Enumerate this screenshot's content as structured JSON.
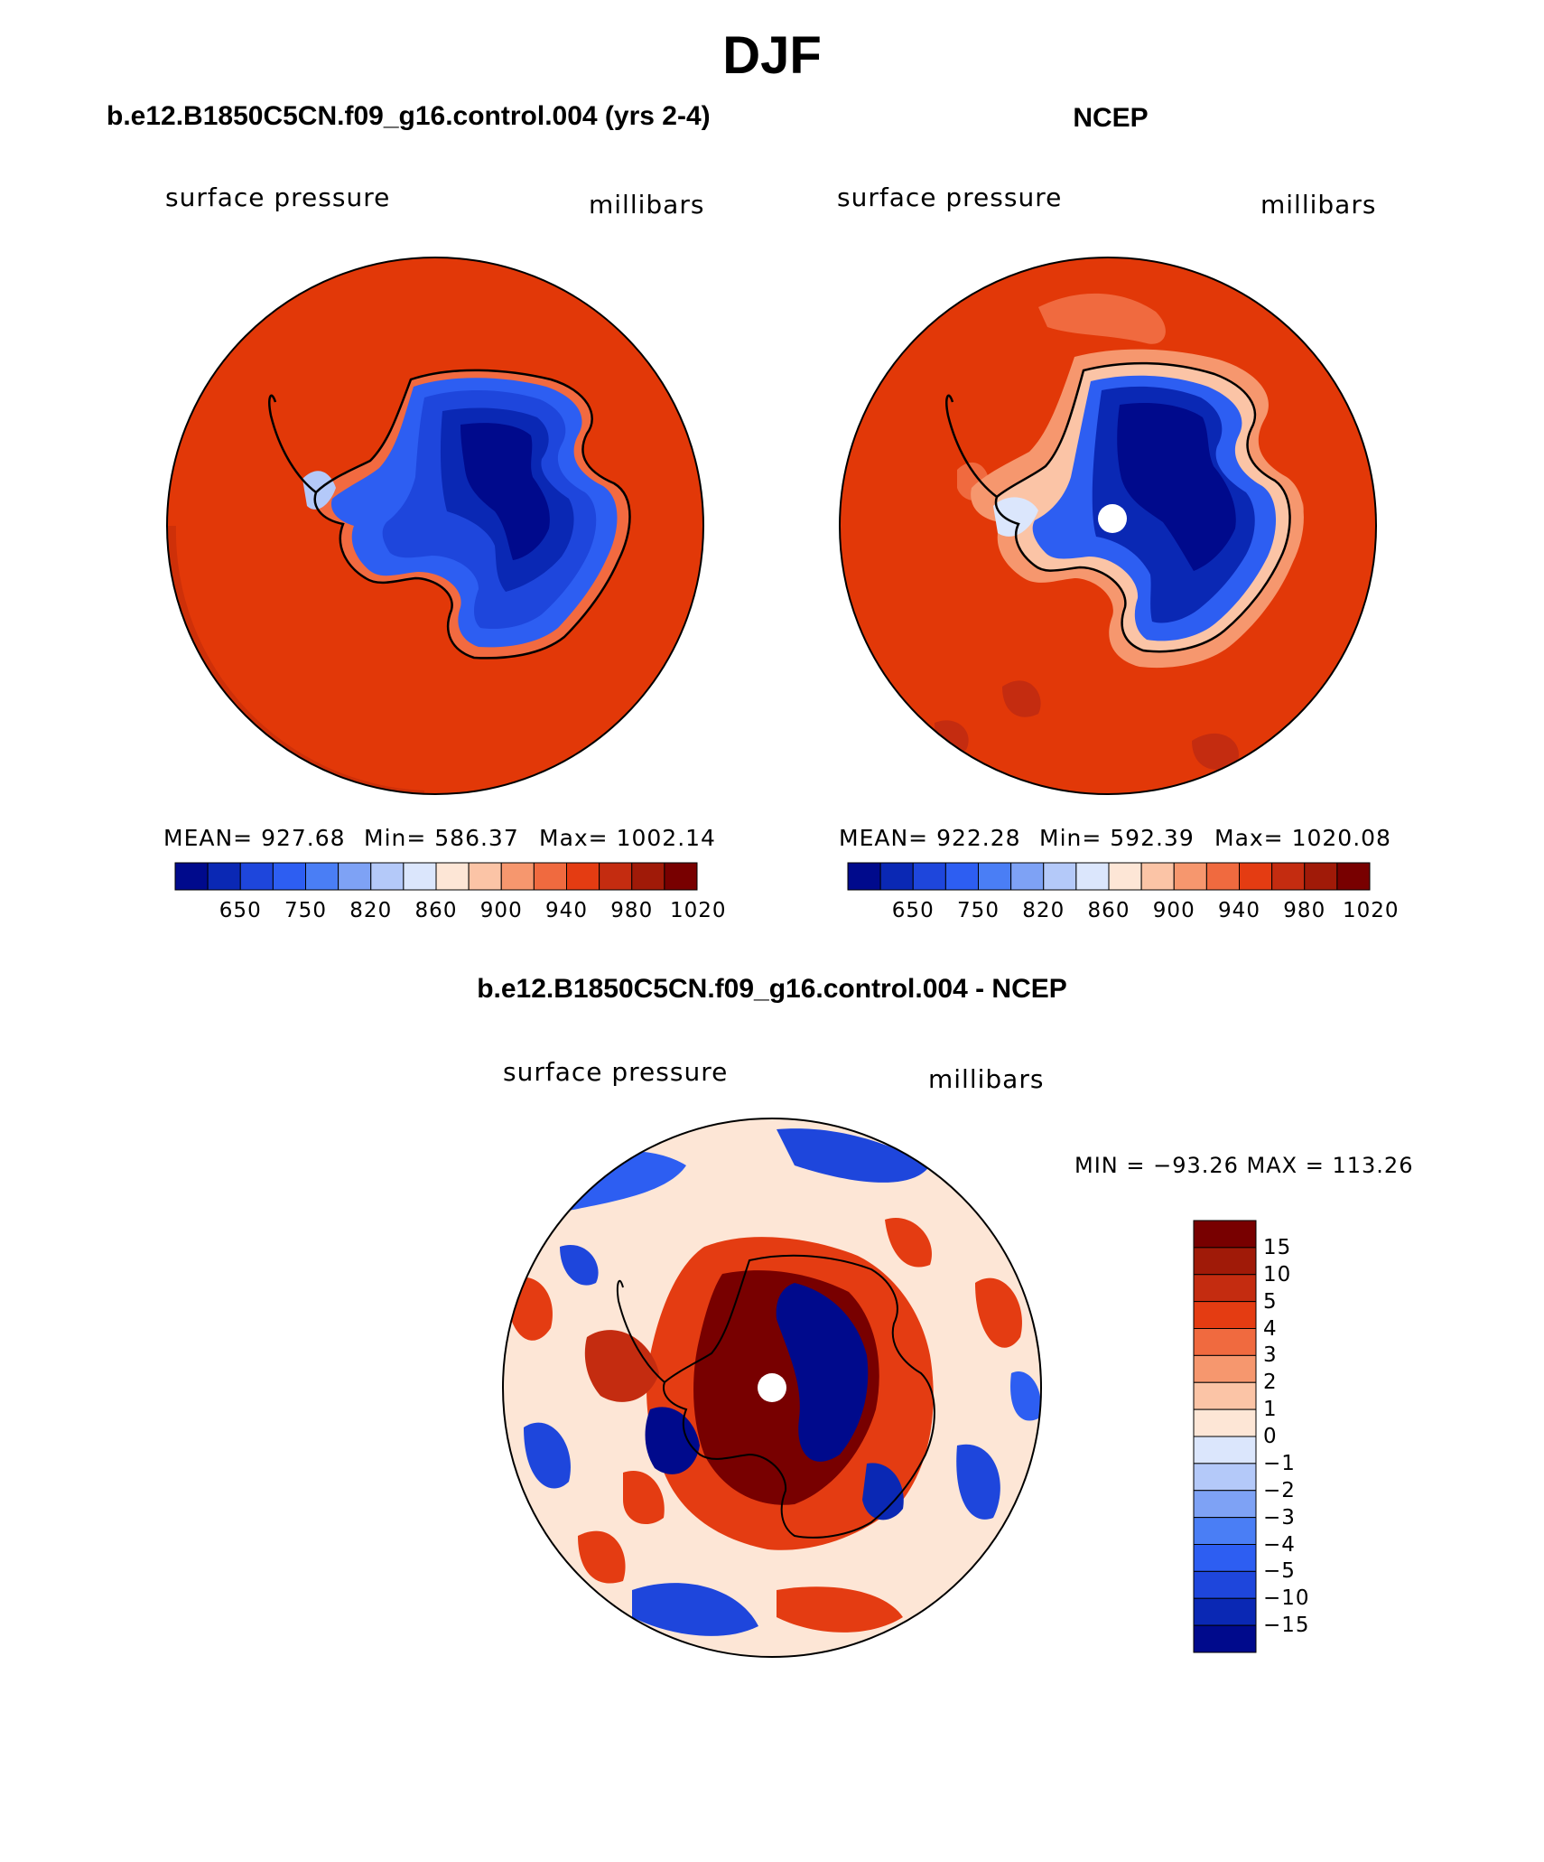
{
  "title": "DJF",
  "colors": {
    "ocean_red": "#e23808",
    "deep_blue": "#000a8c",
    "land_outline": "#000000",
    "missing_pole": "#ffffff"
  },
  "panels": [
    {
      "title": "b.e12.B1850C5CN.f09_g16.control.004 (yrs 2-4)",
      "variable_label": "surface pressure",
      "units_label": "millibars",
      "stats": {
        "mean": "MEAN= 927.68",
        "min": "Min= 586.37",
        "max": "Max= 1002.14"
      },
      "colorbar": {
        "levels": [
          "650",
          "750",
          "820",
          "860",
          "900",
          "940",
          "980",
          "1020"
        ],
        "colors": [
          "#000a8c",
          "#0a28b4",
          "#1e46dc",
          "#2d5ef2",
          "#4a7ef5",
          "#7ea2f5",
          "#b4c9f9",
          "#dbe6fc",
          "#fde6d6",
          "#fbc4a6",
          "#f6976e",
          "#f06a3f",
          "#e43c12",
          "#c42c10",
          "#a01a08",
          "#780000"
        ]
      }
    },
    {
      "title": "NCEP",
      "variable_label": "surface pressure",
      "units_label": "millibars",
      "stats": {
        "mean": "MEAN= 922.28",
        "min": "Min= 592.39",
        "max": "Max= 1020.08"
      },
      "colorbar": {
        "levels": [
          "650",
          "750",
          "820",
          "860",
          "900",
          "940",
          "980",
          "1020"
        ],
        "colors": [
          "#000a8c",
          "#0a28b4",
          "#1e46dc",
          "#2d5ef2",
          "#4a7ef5",
          "#7ea2f5",
          "#b4c9f9",
          "#dbe6fc",
          "#fde6d6",
          "#fbc4a6",
          "#f6976e",
          "#f06a3f",
          "#e43c12",
          "#c42c10",
          "#a01a08",
          "#780000"
        ]
      }
    }
  ],
  "difference": {
    "title": "b.e12.B1850C5CN.f09_g16.control.004 - NCEP",
    "variable_label": "surface pressure",
    "units_label": "millibars",
    "range_text": "MIN = −93.26 MAX = 113.26",
    "colorbar": {
      "levels": [
        "15",
        "10",
        "5",
        "4",
        "3",
        "2",
        "1",
        "0",
        "−1",
        "−2",
        "−3",
        "−4",
        "−5",
        "−10",
        "−15"
      ],
      "colors": [
        "#780000",
        "#a01a08",
        "#c42c10",
        "#e43c12",
        "#f06a3f",
        "#f6976e",
        "#fbc4a6",
        "#fde6d6",
        "#dbe6fc",
        "#b4c9f9",
        "#7ea2f5",
        "#4a7ef5",
        "#2d5ef2",
        "#1e46dc",
        "#0a28b4",
        "#000a8c"
      ]
    }
  }
}
